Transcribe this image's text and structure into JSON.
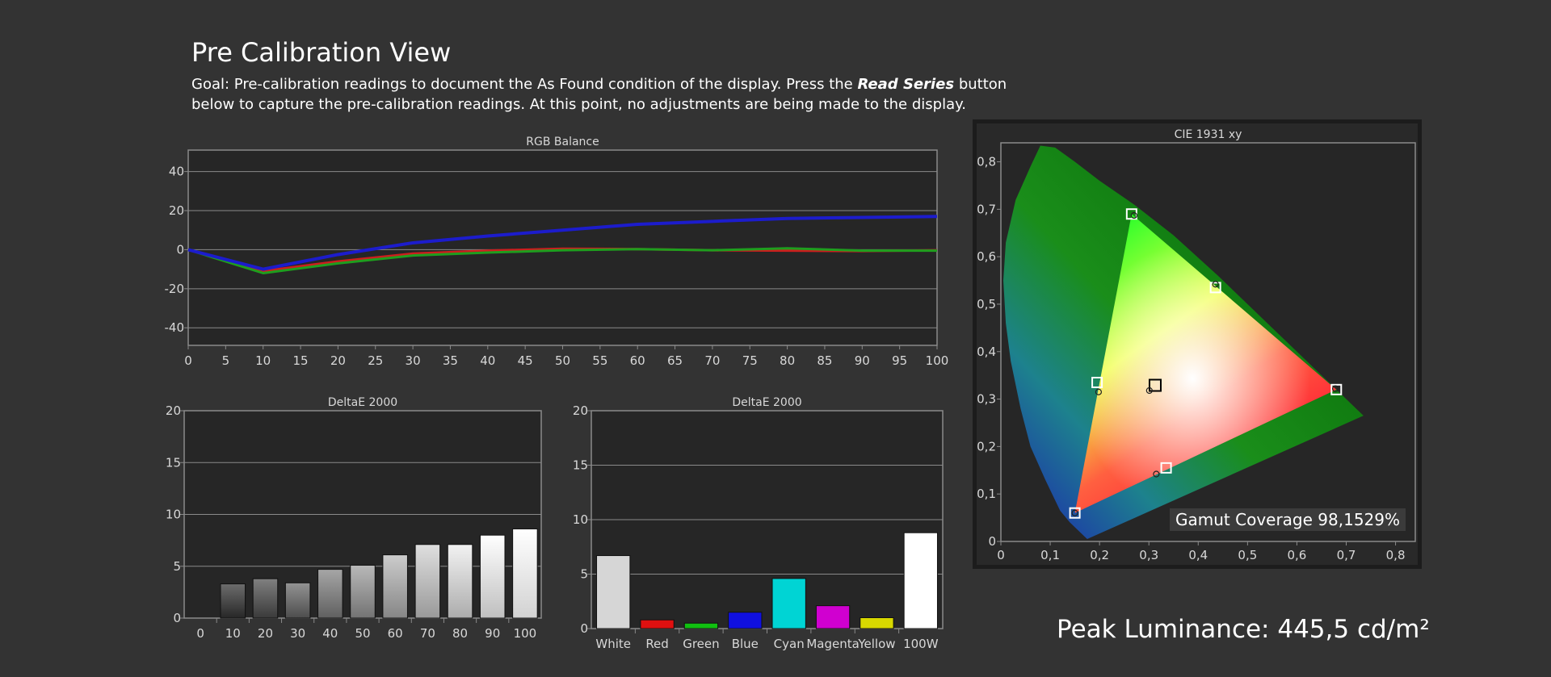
{
  "page": {
    "title": "Pre Calibration View",
    "goal_prefix": "Goal: Pre-calibration readings to document the As Found condition of the display. Press the ",
    "goal_button_name": "Read Series",
    "goal_suffix": " button below to capture the pre-calibration readings. At this point, no adjustments are being made to the display.",
    "peak_luminance": "Peak Luminance: 445,5 cd/m²",
    "gamut_coverage": "Gamut Coverage 98,1529%"
  },
  "chart_data": [
    {
      "type": "line",
      "title": "RGB Balance",
      "x": [
        0,
        10,
        20,
        30,
        40,
        50,
        60,
        70,
        80,
        90,
        100
      ],
      "xticks": [
        "0",
        "5",
        "10",
        "15",
        "20",
        "25",
        "30",
        "35",
        "40",
        "45",
        "50",
        "55",
        "60",
        "65",
        "70",
        "75",
        "80",
        "85",
        "90",
        "95",
        "100"
      ],
      "yticks": [
        "40",
        "20",
        "0",
        "-20",
        "-40"
      ],
      "xlim": [
        0,
        100
      ],
      "ylim": [
        -49,
        51
      ],
      "grid": true,
      "series": [
        {
          "color": "#cc1e1e",
          "values": [
            0,
            -11,
            -6,
            -2,
            -0.5,
            0.5,
            0.3,
            -0.3,
            -0.5,
            -0.7,
            -0.3
          ]
        },
        {
          "color": "#1e9e1e",
          "values": [
            0,
            -12,
            -7,
            -3,
            -1.5,
            -0.3,
            0.3,
            -0.3,
            0.7,
            -0.5,
            -0.5
          ]
        },
        {
          "color": "#1c1ccc",
          "values": [
            0,
            -10,
            -2.5,
            3.5,
            7,
            10,
            13,
            14.5,
            16,
            16.5,
            17
          ]
        }
      ]
    },
    {
      "type": "bar",
      "title": "DeltaE 2000",
      "categories": [
        "0",
        "10",
        "20",
        "30",
        "40",
        "50",
        "60",
        "70",
        "80",
        "90",
        "100"
      ],
      "values": [
        0,
        3.3,
        3.8,
        3.4,
        4.7,
        5.1,
        6.1,
        7.1,
        7.1,
        8.0,
        8.6
      ],
      "yticks": [
        "20",
        "15",
        "10",
        "5",
        "0"
      ],
      "ylim": [
        0,
        20
      ],
      "grid": true
    },
    {
      "type": "bar",
      "title": "DeltaE 2000",
      "categories": [
        "White",
        "Red",
        "Green",
        "Blue",
        "Cyan",
        "Magenta",
        "Yellow",
        "100W"
      ],
      "values": [
        6.7,
        0.8,
        0.5,
        1.5,
        4.6,
        2.1,
        1.0,
        8.8
      ],
      "colors": [
        "#d6d6d6",
        "#e01010",
        "#10c010",
        "#1010e0",
        "#00d4d4",
        "#d000d0",
        "#d8d800",
        "#ffffff"
      ],
      "yticks": [
        "20",
        "15",
        "10",
        "5",
        "0"
      ],
      "ylim": [
        0,
        20
      ],
      "grid": true
    },
    {
      "type": "scatter",
      "title": "CIE 1931 xy",
      "xticks": [
        "0",
        "0,1",
        "0,2",
        "0,3",
        "0,4",
        "0,5",
        "0,6",
        "0,7",
        "0,8"
      ],
      "yticks": [
        "0,8",
        "0,7",
        "0,6",
        "0,5",
        "0,4",
        "0,3",
        "0,2",
        "0,1",
        "0"
      ],
      "xlim": [
        0,
        0.84
      ],
      "ylim": [
        0,
        0.84
      ],
      "targets": [
        {
          "name": "Red",
          "x": 0.68,
          "y": 0.32
        },
        {
          "name": "Green",
          "x": 0.265,
          "y": 0.69
        },
        {
          "name": "Blue",
          "x": 0.15,
          "y": 0.06
        },
        {
          "name": "Cyan",
          "x": 0.195,
          "y": 0.335
        },
        {
          "name": "Magenta",
          "x": 0.335,
          "y": 0.155
        },
        {
          "name": "Yellow",
          "x": 0.435,
          "y": 0.535
        },
        {
          "name": "White",
          "x": 0.3127,
          "y": 0.329
        }
      ],
      "measured": [
        {
          "name": "Red",
          "x": 0.678,
          "y": 0.322
        },
        {
          "name": "Green",
          "x": 0.27,
          "y": 0.687
        },
        {
          "name": "Blue",
          "x": 0.15,
          "y": 0.06
        },
        {
          "name": "Cyan",
          "x": 0.198,
          "y": 0.315
        },
        {
          "name": "Magenta",
          "x": 0.315,
          "y": 0.142
        },
        {
          "name": "Yellow",
          "x": 0.435,
          "y": 0.542
        },
        {
          "name": "White",
          "x": 0.301,
          "y": 0.318
        }
      ]
    }
  ]
}
